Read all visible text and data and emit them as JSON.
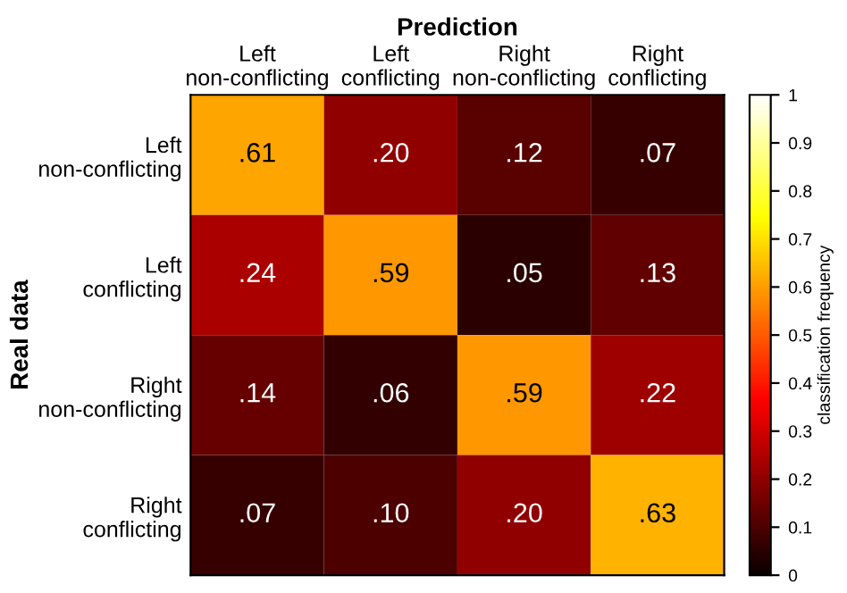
{
  "chart_data": {
    "type": "heatmap",
    "title": "Prediction",
    "ylabel": "Real data",
    "clabel": "classification frequency",
    "categories": [
      "Left\nnon-conflicting",
      "Left\nconflicting",
      "Right\nnon-conflicting",
      "Right\nconflicting"
    ],
    "y_categories": [
      "Left\nnon-conflicting",
      "Left\nconflicting",
      "Right\nnon-conflicting",
      "Right\nconflicting"
    ],
    "cells": [
      [
        0.61,
        0.2,
        0.12,
        0.07
      ],
      [
        0.24,
        0.59,
        0.05,
        0.13
      ],
      [
        0.14,
        0.06,
        0.59,
        0.22
      ],
      [
        0.07,
        0.1,
        0.2,
        0.63
      ]
    ],
    "cell_labels": [
      [
        ".61",
        ".20",
        ".12",
        ".07"
      ],
      [
        ".24",
        ".59",
        ".05",
        ".13"
      ],
      [
        ".14",
        ".06",
        ".59",
        ".22"
      ],
      [
        ".07",
        ".10",
        ".20",
        ".63"
      ]
    ],
    "clim": [
      0,
      1
    ],
    "cticks": [
      0,
      0.1,
      0.2,
      0.3,
      0.4,
      0.5,
      0.6,
      0.7,
      0.8,
      0.9,
      1
    ]
  }
}
